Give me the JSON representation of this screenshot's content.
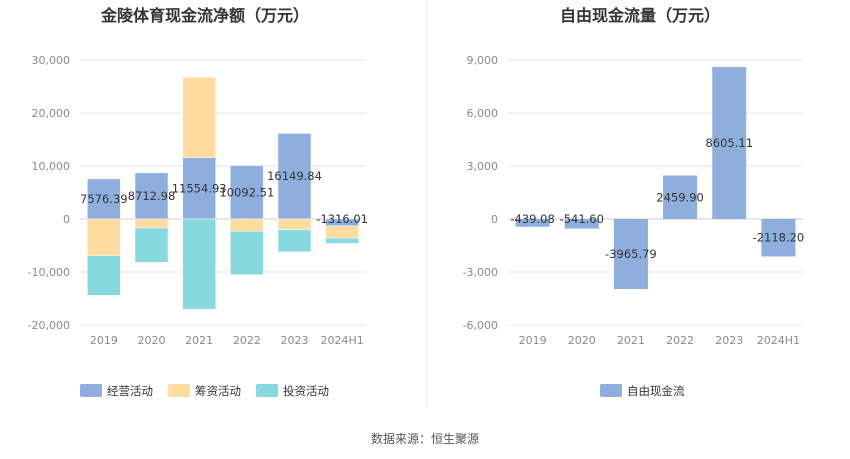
{
  "source_note": "数据来源：恒生聚源",
  "chart_data": [
    {
      "type": "bar",
      "stacked": true,
      "title": "金陵体育现金流净额（万元）",
      "categories": [
        "2019",
        "2020",
        "2021",
        "2022",
        "2023",
        "2024H1"
      ],
      "ylim": [
        -20000,
        30000
      ],
      "yticks": [
        30000,
        20000,
        10000,
        0,
        -10000,
        -20000
      ],
      "ytick_labels": [
        "30,000",
        "20,000",
        "10,000",
        "0",
        "-10,000",
        "-20,000"
      ],
      "grid": true,
      "legend_position": "bottom",
      "series": [
        {
          "name": "经营活动",
          "color": "#8eaedd",
          "values": [
            7576.39,
            8712.98,
            11554.93,
            10092.51,
            16149.84,
            -1316.01
          ]
        },
        {
          "name": "筹资活动",
          "color": "#fddc9e",
          "values": [
            -6900,
            -1700,
            15200,
            -2300,
            -2000,
            -2300
          ]
        },
        {
          "name": "投资活动",
          "color": "#86d9dc",
          "values": [
            -7500,
            -6500,
            -17000,
            -8200,
            -4200,
            -1000
          ]
        }
      ],
      "data_labels": [
        "7576.39",
        "8712.98",
        "11554.93",
        "10092.51",
        "16149.84",
        "-1316.01"
      ]
    },
    {
      "type": "bar",
      "title": "自由现金流量（万元）",
      "categories": [
        "2019",
        "2020",
        "2021",
        "2022",
        "2023",
        "2024H1"
      ],
      "ylim": [
        -6000,
        9000
      ],
      "yticks": [
        9000,
        6000,
        3000,
        0,
        -3000,
        -6000
      ],
      "ytick_labels": [
        "9,000",
        "6,000",
        "3,000",
        "0",
        "-3,000",
        "-6,000"
      ],
      "grid": true,
      "legend_position": "bottom",
      "series": [
        {
          "name": "自由现金流",
          "color": "#8eaedd",
          "values": [
            -439.08,
            -541.6,
            -3965.79,
            2459.9,
            8605.11,
            -2118.2
          ]
        }
      ],
      "data_labels": [
        "-439.08",
        "-541.60",
        "-3965.79",
        "2459.90",
        "8605.11",
        "-2118.20"
      ]
    }
  ]
}
